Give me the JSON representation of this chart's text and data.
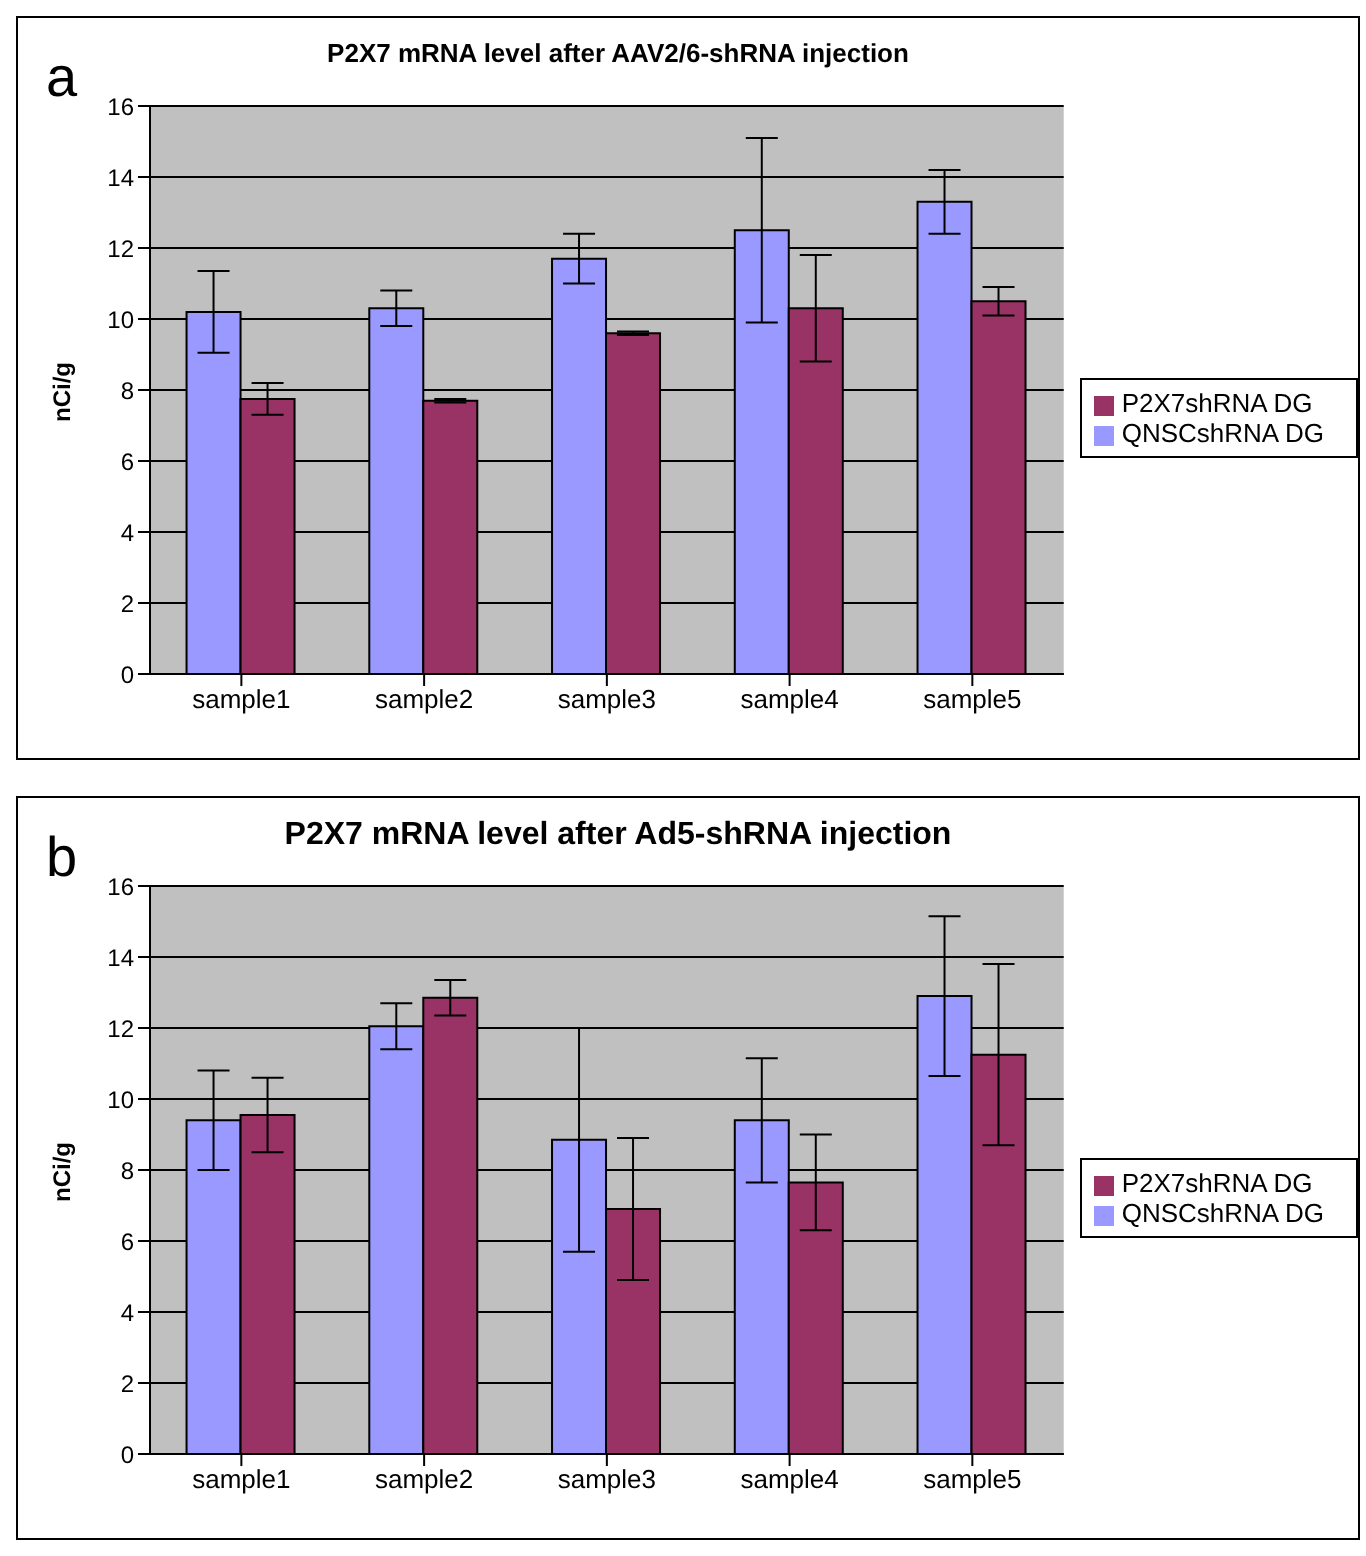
{
  "chart_data": [
    {
      "type": "bar",
      "title": "P2X7 mRNA level after AAV2/6-shRNA injection",
      "ylabel": "nCi/g",
      "annotations": [
        "a"
      ],
      "categories": [
        "sample1",
        "sample2",
        "sample3",
        "sample4",
        "sample5"
      ],
      "series": [
        {
          "name": "QNSCshRNA DG",
          "color": "#9999ff",
          "values": [
            10.2,
            10.3,
            11.7,
            12.5,
            13.3
          ],
          "errors": [
            1.15,
            0.5,
            0.7,
            2.6,
            0.9
          ]
        },
        {
          "name": "P2X7shRNA DG",
          "color": "#993366",
          "values": [
            7.75,
            7.7,
            9.6,
            10.3,
            10.5
          ],
          "errors": [
            0.45,
            0.05,
            0.05,
            1.5,
            0.4
          ]
        }
      ],
      "ylim": [
        0,
        16
      ],
      "yticks": [
        0,
        2,
        4,
        6,
        8,
        10,
        12,
        14,
        16
      ],
      "grid": "y",
      "legend": "right"
    },
    {
      "type": "bar",
      "title": "P2X7 mRNA level after Ad5-shRNA injection",
      "ylabel": "nCi/g",
      "annotations": [
        "b"
      ],
      "categories": [
        "sample1",
        "sample2",
        "sample3",
        "sample4",
        "sample5"
      ],
      "series": [
        {
          "name": "QNSCshRNA DG",
          "color": "#9999ff",
          "values": [
            9.4,
            12.05,
            8.85,
            9.4,
            12.9
          ],
          "errors": [
            1.4,
            0.65,
            3.15,
            1.75,
            2.25
          ]
        },
        {
          "name": "P2X7shRNA DG",
          "color": "#993366",
          "values": [
            9.55,
            12.85,
            6.9,
            7.65,
            11.25
          ],
          "errors": [
            1.05,
            0.5,
            2.0,
            1.35,
            2.55
          ]
        }
      ],
      "ylim": [
        0,
        16
      ],
      "yticks": [
        0,
        2,
        4,
        6,
        8,
        10,
        12,
        14,
        16
      ],
      "grid": "y",
      "legend": "right"
    }
  ]
}
